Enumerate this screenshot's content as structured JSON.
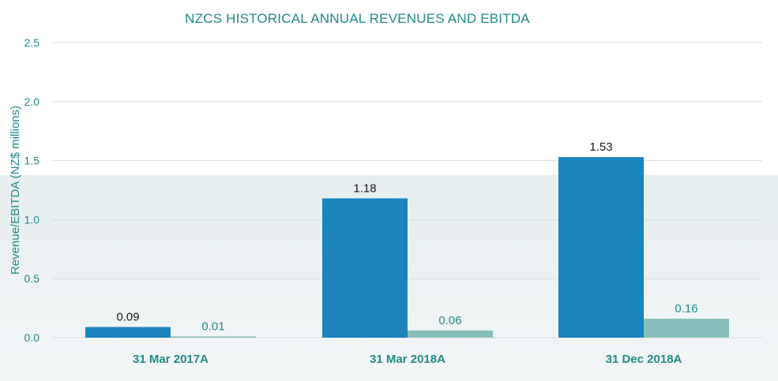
{
  "chart_data": {
    "type": "bar",
    "title": "NZCS HISTORICAL ANNUAL REVENUES AND EBITDA",
    "ylabel": "Revenue/EBITDA (NZ$ millions)",
    "xlabel": "",
    "ylim": [
      0,
      2.5
    ],
    "yticks": [
      "0.0",
      "0.5",
      "1.0",
      "1.5",
      "2.0",
      "2.5"
    ],
    "categories": [
      "31 Mar 2017A",
      "31 Mar 2018A",
      "31 Dec 2018A"
    ],
    "series": [
      {
        "values": [
          0.09,
          1.18,
          1.53
        ],
        "labels": [
          "0.09",
          "1.18",
          "1.53"
        ],
        "color": "#1b84bd"
      },
      {
        "values": [
          0.01,
          0.06,
          0.16
        ],
        "labels": [
          "0.01",
          "0.06",
          "0.16"
        ],
        "color": "#86bfb9"
      }
    ],
    "grid": true,
    "legend": "none"
  },
  "colors": {
    "axis_text": "#1f8a86",
    "gridline": "#d9dede",
    "background_band": "#eef3f4"
  }
}
